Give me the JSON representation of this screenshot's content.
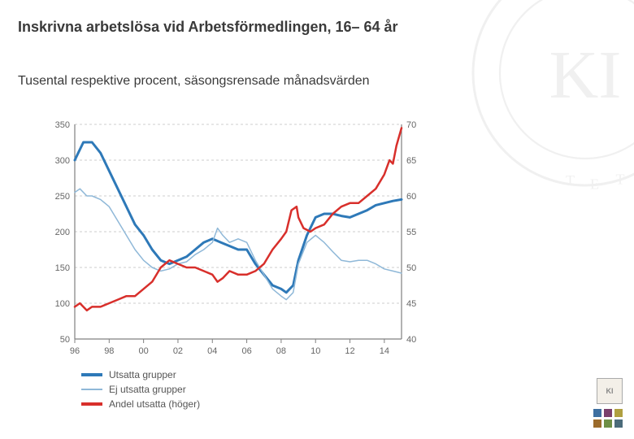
{
  "title": "Inskrivna arbetslösa vid Arbetsförmedlingen, 16– 64 år",
  "subtitle": "Tusental respektive procent, säsongsrensade månadsvärden",
  "chart": {
    "type": "line-dual-axis",
    "background_color": "#ffffff",
    "grid_color": "#cccccc",
    "axis_color": "#808080",
    "tick_fontsize": 11,
    "tick_color": "#666666",
    "x": {
      "min": 1996,
      "max": 2015,
      "ticks": [
        1996,
        1998,
        2000,
        2002,
        2004,
        2006,
        2008,
        2010,
        2012,
        2014
      ],
      "tick_labels": [
        "96",
        "98",
        "00",
        "02",
        "04",
        "06",
        "08",
        "10",
        "12",
        "14"
      ]
    },
    "y_left": {
      "min": 50,
      "max": 350,
      "step": 50,
      "ticks": [
        50,
        100,
        150,
        200,
        250,
        300,
        350
      ]
    },
    "y_right": {
      "min": 40,
      "max": 70,
      "step": 5,
      "ticks": [
        40,
        45,
        50,
        55,
        60,
        65,
        70
      ]
    },
    "series": [
      {
        "key": "utsatta",
        "axis": "left",
        "color": "#2e79b8",
        "line_width": 3,
        "data": [
          [
            1996,
            300
          ],
          [
            1996.2,
            310
          ],
          [
            1996.5,
            325
          ],
          [
            1997,
            325
          ],
          [
            1997.5,
            310
          ],
          [
            1998,
            285
          ],
          [
            1998.5,
            260
          ],
          [
            1999,
            235
          ],
          [
            1999.5,
            210
          ],
          [
            2000,
            195
          ],
          [
            2000.5,
            175
          ],
          [
            2001,
            160
          ],
          [
            2001.5,
            155
          ],
          [
            2002,
            160
          ],
          [
            2002.5,
            165
          ],
          [
            2003,
            175
          ],
          [
            2003.5,
            185
          ],
          [
            2004,
            190
          ],
          [
            2004.5,
            185
          ],
          [
            2005,
            180
          ],
          [
            2005.5,
            175
          ],
          [
            2006,
            175
          ],
          [
            2006.5,
            155
          ],
          [
            2007,
            140
          ],
          [
            2007.5,
            125
          ],
          [
            2008,
            120
          ],
          [
            2008.3,
            115
          ],
          [
            2008.7,
            125
          ],
          [
            2009,
            160
          ],
          [
            2009.5,
            195
          ],
          [
            2010,
            220
          ],
          [
            2010.5,
            225
          ],
          [
            2011,
            225
          ],
          [
            2011.5,
            222
          ],
          [
            2012,
            220
          ],
          [
            2012.5,
            225
          ],
          [
            2013,
            230
          ],
          [
            2013.5,
            237
          ],
          [
            2014,
            240
          ],
          [
            2014.5,
            243
          ],
          [
            2015,
            245
          ]
        ]
      },
      {
        "key": "ej_utsatta",
        "axis": "left",
        "color": "#8fb8d8",
        "line_width": 1.5,
        "data": [
          [
            1996,
            255
          ],
          [
            1996.3,
            260
          ],
          [
            1996.7,
            250
          ],
          [
            1997,
            250
          ],
          [
            1997.5,
            245
          ],
          [
            1998,
            235
          ],
          [
            1998.5,
            215
          ],
          [
            1999,
            195
          ],
          [
            1999.5,
            175
          ],
          [
            2000,
            160
          ],
          [
            2000.5,
            150
          ],
          [
            2001,
            145
          ],
          [
            2001.5,
            148
          ],
          [
            2002,
            155
          ],
          [
            2002.5,
            158
          ],
          [
            2003,
            168
          ],
          [
            2003.5,
            175
          ],
          [
            2004,
            185
          ],
          [
            2004.3,
            205
          ],
          [
            2004.6,
            195
          ],
          [
            2005,
            185
          ],
          [
            2005.5,
            190
          ],
          [
            2006,
            185
          ],
          [
            2006.5,
            160
          ],
          [
            2007,
            140
          ],
          [
            2007.5,
            120
          ],
          [
            2008,
            110
          ],
          [
            2008.3,
            105
          ],
          [
            2008.7,
            115
          ],
          [
            2009,
            155
          ],
          [
            2009.5,
            185
          ],
          [
            2010,
            195
          ],
          [
            2010.5,
            185
          ],
          [
            2011,
            172
          ],
          [
            2011.5,
            160
          ],
          [
            2012,
            158
          ],
          [
            2012.5,
            160
          ],
          [
            2013,
            160
          ],
          [
            2013.5,
            155
          ],
          [
            2014,
            148
          ],
          [
            2014.5,
            145
          ],
          [
            2015,
            142
          ]
        ]
      },
      {
        "key": "andel_utsatta",
        "axis": "right",
        "color": "#d82f2b",
        "line_width": 2.5,
        "data": [
          [
            1996,
            44.5
          ],
          [
            1996.3,
            45
          ],
          [
            1996.7,
            44
          ],
          [
            1997,
            44.5
          ],
          [
            1997.5,
            44.5
          ],
          [
            1998,
            45
          ],
          [
            1998.5,
            45.5
          ],
          [
            1999,
            46
          ],
          [
            1999.5,
            46
          ],
          [
            2000,
            47
          ],
          [
            2000.5,
            48
          ],
          [
            2001,
            50
          ],
          [
            2001.5,
            51
          ],
          [
            2002,
            50.5
          ],
          [
            2002.5,
            50
          ],
          [
            2003,
            50
          ],
          [
            2003.5,
            49.5
          ],
          [
            2004,
            49
          ],
          [
            2004.3,
            48
          ],
          [
            2004.6,
            48.5
          ],
          [
            2005,
            49.5
          ],
          [
            2005.5,
            49
          ],
          [
            2006,
            49
          ],
          [
            2006.5,
            49.5
          ],
          [
            2007,
            50.5
          ],
          [
            2007.5,
            52.5
          ],
          [
            2008,
            54
          ],
          [
            2008.3,
            55
          ],
          [
            2008.6,
            58
          ],
          [
            2008.9,
            58.5
          ],
          [
            2009,
            57
          ],
          [
            2009.3,
            55.5
          ],
          [
            2009.7,
            55
          ],
          [
            2010,
            55.5
          ],
          [
            2010.5,
            56
          ],
          [
            2011,
            57.5
          ],
          [
            2011.5,
            58.5
          ],
          [
            2012,
            59
          ],
          [
            2012.5,
            59
          ],
          [
            2013,
            60
          ],
          [
            2013.5,
            61
          ],
          [
            2014,
            63
          ],
          [
            2014.3,
            65
          ],
          [
            2014.5,
            64.5
          ],
          [
            2014.7,
            67
          ],
          [
            2015,
            69.5
          ]
        ]
      }
    ]
  },
  "legend": {
    "items": [
      {
        "key": "utsatta",
        "label": "Utsatta grupper",
        "color": "#2e79b8",
        "thick": true
      },
      {
        "key": "ej_utsatta",
        "label": "Ej utsatta grupper",
        "color": "#8fb8d8",
        "thick": false
      },
      {
        "key": "andel_utsatta",
        "label": "Andel utsatta (höger)",
        "color": "#d82f2b",
        "thick": true
      }
    ]
  },
  "badges": {
    "ki_label": "KI",
    "colors": [
      "#3e6fa0",
      "#7a3f6b",
      "#b0a040",
      "#9b6b2b",
      "#6e8f46",
      "#4b6b7a"
    ]
  }
}
